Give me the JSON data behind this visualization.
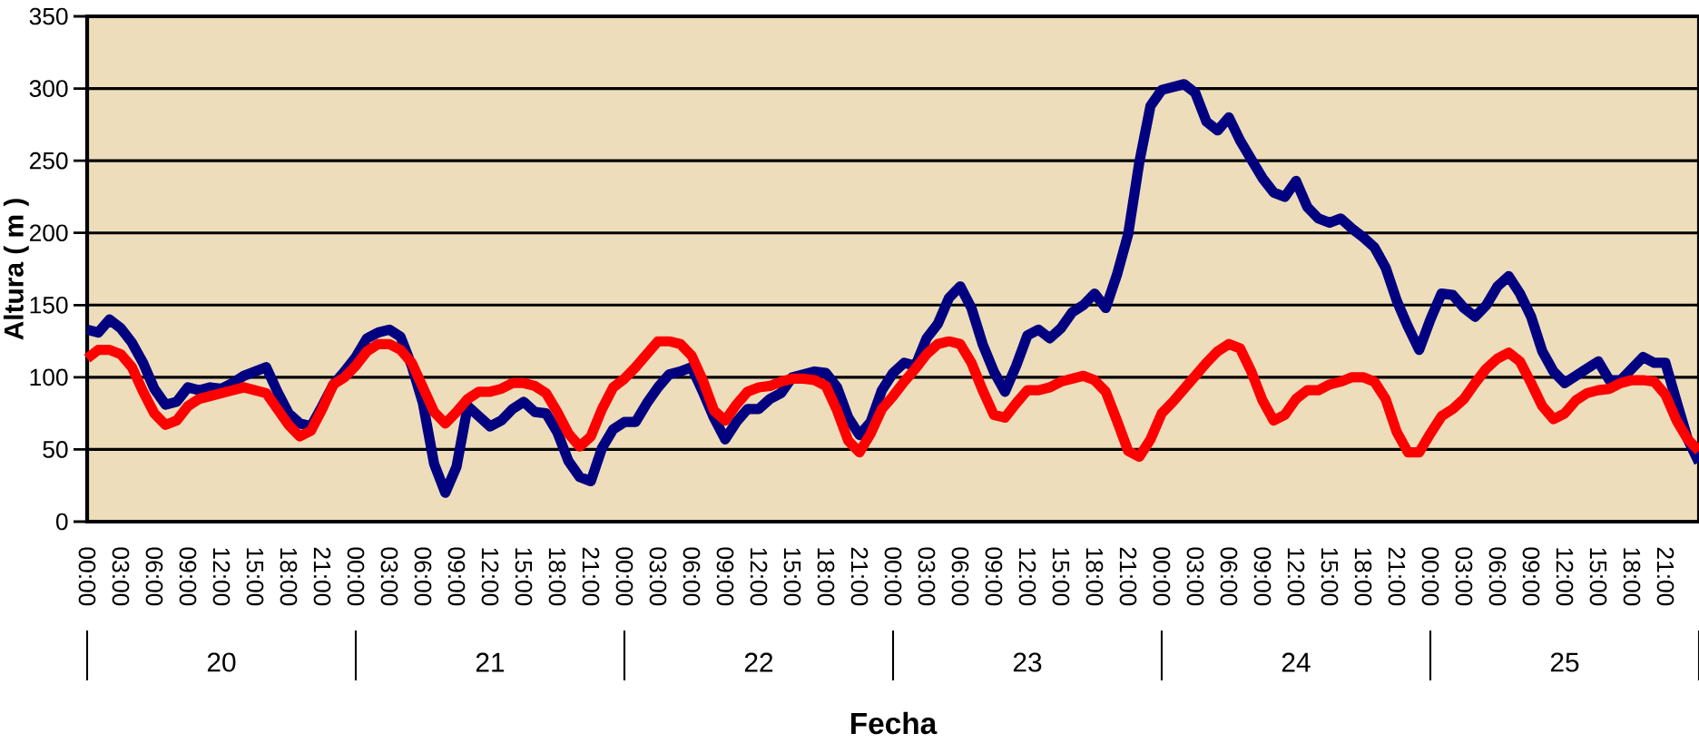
{
  "chart_data": {
    "type": "line",
    "xlabel": "Fecha",
    "ylabel": "Altura ( m )",
    "categories": [
      "00:00",
      null,
      null,
      "03:00",
      null,
      null,
      "06:00",
      null,
      null,
      "09:00",
      null,
      null,
      "12:00",
      null,
      null,
      "15:00",
      null,
      null,
      "18:00",
      null,
      null,
      "21:00",
      null,
      null,
      "00:00",
      null,
      null,
      "03:00",
      null,
      null,
      "06:00",
      null,
      null,
      "09:00",
      null,
      null,
      "12:00",
      null,
      null,
      "15:00",
      null,
      null,
      "18:00",
      null,
      null,
      "21:00",
      null,
      null,
      "00:00",
      null,
      null,
      "03:00",
      null,
      null,
      "06:00",
      null,
      null,
      "09:00",
      null,
      null,
      "12:00",
      null,
      null,
      "15:00",
      null,
      null,
      "18:00",
      null,
      null,
      "21:00",
      null,
      null,
      "00:00",
      null,
      null,
      "03:00",
      null,
      null,
      "06:00",
      null,
      null,
      "09:00",
      null,
      null,
      "12:00",
      null,
      null,
      "15:00",
      null,
      null,
      "18:00",
      null,
      null,
      "21:00",
      null,
      null,
      "00:00",
      null,
      null,
      "03:00",
      null,
      null,
      "06:00",
      null,
      null,
      "09:00",
      null,
      null,
      "12:00",
      null,
      null,
      "15:00",
      null,
      null,
      "18:00",
      null,
      null,
      "21:00",
      null,
      null,
      "00:00",
      null,
      null,
      "03:00",
      null,
      null,
      "06:00",
      null,
      null,
      "09:00",
      null,
      null,
      "12:00",
      null,
      null,
      "15:00",
      null,
      null,
      "18:00",
      null,
      null,
      "21:00",
      null,
      null,
      null
    ],
    "series": [
      {
        "color": "#000080",
        "values": [
          133,
          131,
          140,
          134,
          124,
          110,
          92,
          81,
          83,
          93,
          91,
          93,
          92,
          96,
          101,
          104,
          107,
          90,
          75,
          68,
          66,
          80,
          95,
          104,
          114,
          127,
          131,
          133,
          128,
          108,
          82,
          40,
          20,
          38,
          80,
          73,
          66,
          70,
          78,
          83,
          76,
          75,
          62,
          42,
          31,
          28,
          51,
          64,
          69,
          69,
          82,
          93,
          102,
          104,
          107,
          90,
          72,
          57,
          69,
          78,
          78,
          85,
          89,
          100,
          102,
          104,
          103,
          93,
          72,
          60,
          69,
          91,
          103,
          110,
          108,
          127,
          137,
          155,
          163,
          148,
          123,
          104,
          90,
          108,
          129,
          133,
          127,
          134,
          145,
          150,
          158,
          148,
          171,
          199,
          249,
          288,
          299,
          301,
          303,
          297,
          277,
          271,
          280,
          264,
          251,
          238,
          228,
          225,
          236,
          218,
          210,
          207,
          210,
          203,
          197,
          190,
          176,
          153,
          135,
          119,
          140,
          158,
          157,
          148,
          142,
          150,
          163,
          170,
          158,
          142,
          118,
          104,
          96,
          101,
          106,
          111,
          98,
          98,
          106,
          114,
          110,
          110,
          83,
          57,
          41
        ]
      },
      {
        "color": "#ff0000",
        "values": [
          113,
          119,
          119,
          116,
          107,
          90,
          75,
          67,
          70,
          80,
          85,
          87,
          89,
          91,
          93,
          91,
          89,
          78,
          67,
          59,
          63,
          78,
          95,
          100,
          108,
          118,
          123,
          123,
          119,
          110,
          93,
          76,
          68,
          76,
          85,
          90,
          90,
          92,
          96,
          96,
          94,
          89,
          76,
          61,
          52,
          59,
          78,
          93,
          99,
          107,
          116,
          125,
          125,
          123,
          115,
          98,
          77,
          70,
          81,
          90,
          93,
          94,
          97,
          99,
          99,
          98,
          94,
          77,
          56,
          48,
          61,
          78,
          87,
          97,
          106,
          116,
          123,
          125,
          123,
          110,
          91,
          74,
          72,
          82,
          91,
          91,
          93,
          97,
          99,
          101,
          98,
          90,
          70,
          49,
          45,
          57,
          75,
          83,
          92,
          101,
          110,
          118,
          123,
          120,
          104,
          84,
          70,
          74,
          85,
          91,
          91,
          95,
          97,
          100,
          100,
          97,
          85,
          62,
          48,
          48,
          61,
          73,
          78,
          85,
          96,
          106,
          113,
          117,
          111,
          96,
          80,
          71,
          75,
          84,
          89,
          91,
          92,
          96,
          98,
          98,
          97,
          88,
          70,
          57,
          49
        ]
      }
    ],
    "ylim": [
      0,
      350
    ],
    "yticks": [
      0,
      50,
      100,
      150,
      200,
      250,
      300,
      350
    ],
    "annotations": [
      "20",
      "21",
      "22",
      "23",
      "24",
      "25"
    ],
    "grid": "y",
    "marker": "none",
    "line_style": "solid"
  }
}
